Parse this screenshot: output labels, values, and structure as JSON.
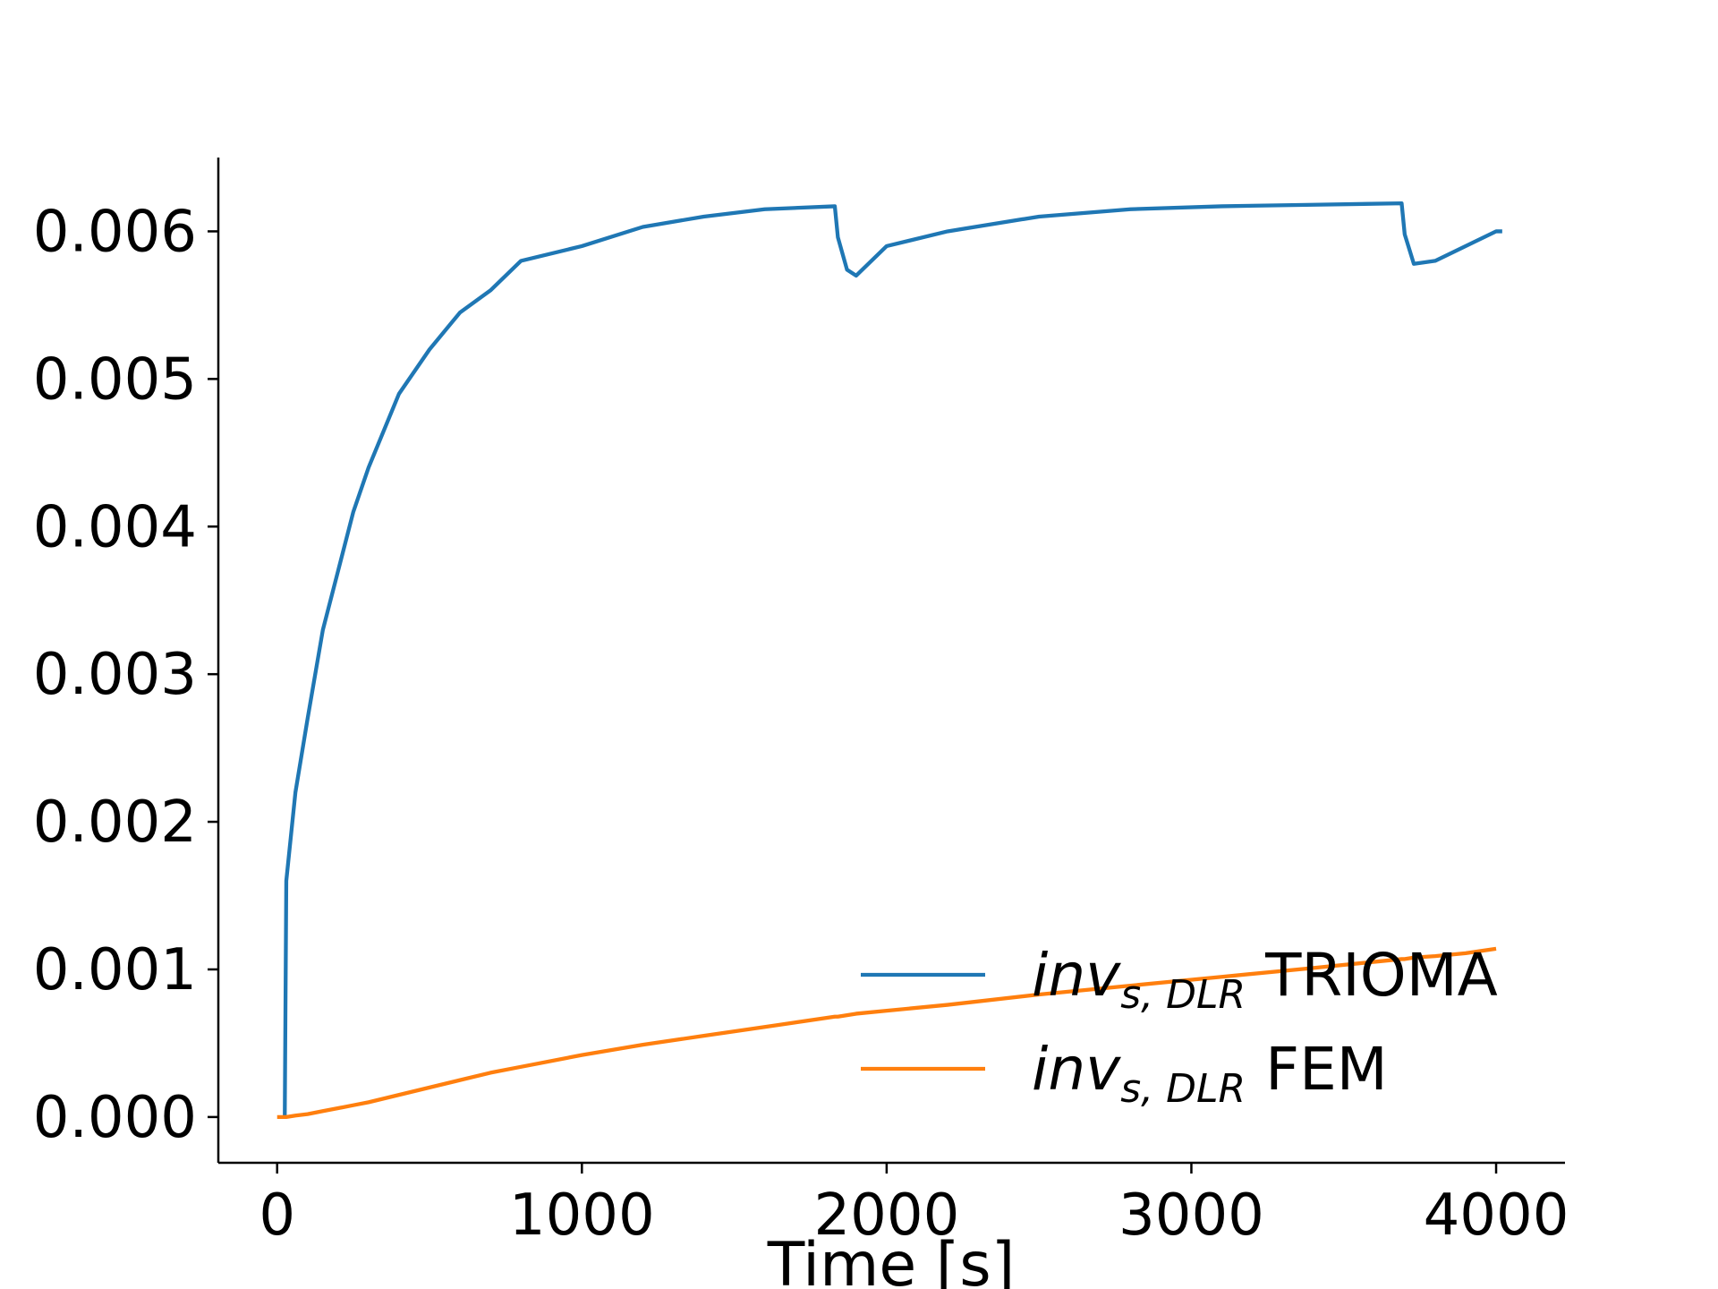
{
  "chart_data": {
    "type": "line",
    "xlabel": "Time [s]",
    "x": [
      0,
      25,
      30,
      60,
      100,
      150,
      200,
      250,
      300,
      400,
      500,
      600,
      700,
      800,
      1000,
      1200,
      1400,
      1600,
      1830,
      1840,
      1870,
      1900,
      2000,
      2200,
      2500,
      2800,
      3100,
      3400,
      3690,
      3700,
      3730,
      3800,
      3900,
      4000,
      4020
    ],
    "legend_symbol": {
      "base": "inv",
      "sub": "s, DLR"
    },
    "series": [
      {
        "name": "TRIOMA",
        "color": "#1f77b4",
        "values": [
          null,
          0,
          0.0016,
          0.0022,
          0.0027,
          0.0033,
          0.0037,
          0.0041,
          0.0044,
          0.0049,
          0.0052,
          0.00545,
          0.0056,
          0.0058,
          0.0059,
          0.00603,
          0.0061,
          0.00615,
          0.00617,
          0.00596,
          0.00574,
          0.0057,
          0.0059,
          0.006,
          0.0061,
          0.00615,
          0.00617,
          0.00618,
          0.00619,
          0.00598,
          0.00578,
          0.0058,
          0.0059,
          0.006,
          0.006
        ]
      },
      {
        "name": "FEM",
        "color": "#ff7f0e",
        "values": [
          0,
          0,
          0,
          1e-05,
          2e-05,
          4e-05,
          6e-05,
          8e-05,
          0.0001,
          0.00015,
          0.0002,
          0.00025,
          0.0003,
          0.00034,
          0.00042,
          0.00049,
          0.00055,
          0.00061,
          0.00068,
          0.00068,
          0.00069,
          0.0007,
          0.00072,
          0.00076,
          0.00083,
          0.00089,
          0.00095,
          0.00101,
          0.00107,
          0.00107,
          0.00108,
          0.00109,
          0.00111,
          0.00114,
          null
        ]
      }
    ],
    "xlim": [
      -193,
      4226
    ],
    "ylim": [
      -0.00031,
      0.0065
    ],
    "xticks": [
      0,
      1000,
      2000,
      3000,
      4000
    ],
    "yticks": [
      {
        "value": 0,
        "label": "0.000"
      },
      {
        "value": 0.001,
        "label": "0.001"
      },
      {
        "value": 0.002,
        "label": "0.002"
      },
      {
        "value": 0.003,
        "label": "0.003"
      },
      {
        "value": 0.004,
        "label": "0.004"
      },
      {
        "value": 0.005,
        "label": "0.005"
      },
      {
        "value": 0.006,
        "label": "0.006"
      }
    ],
    "grid": false,
    "legend_position": "lower right"
  }
}
